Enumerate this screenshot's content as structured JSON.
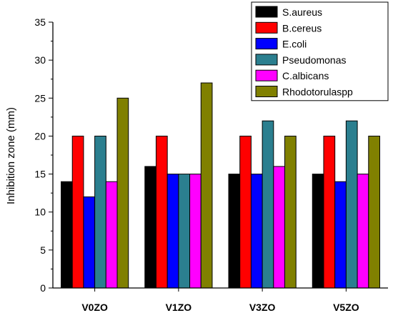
{
  "chart_data": {
    "type": "bar",
    "title": "",
    "xlabel": "",
    "ylabel": "Inhibition zone (mm)",
    "ylim": [
      0,
      35
    ],
    "yticks": [
      0,
      5,
      10,
      15,
      20,
      25,
      30,
      35
    ],
    "grid": false,
    "legend_position": "top-right",
    "categories": [
      "V0ZO",
      "V1ZO",
      "V3ZO",
      "V5ZO"
    ],
    "series": [
      {
        "name": "S.aureus",
        "color": "#000000",
        "values": [
          14,
          16,
          15,
          15
        ]
      },
      {
        "name": "B.cereus",
        "color": "#ff0000",
        "values": [
          20,
          20,
          20,
          20
        ]
      },
      {
        "name": "E.coli",
        "color": "#0000ff",
        "values": [
          12,
          15,
          15,
          14
        ]
      },
      {
        "name": "Pseudomonas",
        "color": "#2b7f8f",
        "values": [
          20,
          15,
          22,
          22
        ]
      },
      {
        "name": "C.albicans",
        "color": "#ff00ff",
        "values": [
          14,
          15,
          16,
          15
        ]
      },
      {
        "name": "Rhodotorulaspp",
        "color": "#808000",
        "values": [
          25,
          27,
          20,
          20
        ]
      }
    ]
  }
}
